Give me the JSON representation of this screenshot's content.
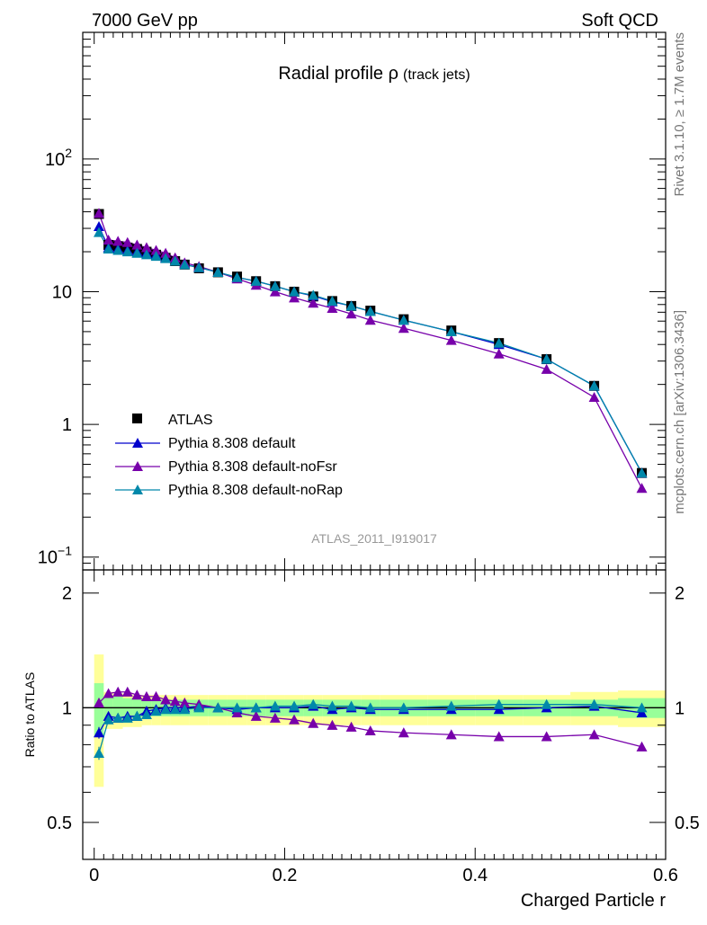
{
  "header": {
    "left": "7000 GeV pp",
    "right": "Soft QCD"
  },
  "side_labels": {
    "rivet": "Rivet 3.1.10, ≥ 1.7M events",
    "mcplots": "mcplots.cern.ch [arXiv:1306.3436]"
  },
  "chart_data": [
    {
      "type": "scatter",
      "title_main": "Radial profile ρ",
      "title_sub": "(track jets)",
      "watermark": "ATLAS_2011_I919017",
      "xlim": [
        -0.012,
        0.6
      ],
      "ylim": [
        0.08,
        900
      ],
      "yscale": "log",
      "x_ticks": [
        0,
        0.2,
        0.4,
        0.6
      ],
      "y_tick_labels": [
        {
          "value": 100,
          "base": "10",
          "exp": "2"
        },
        {
          "value": 10,
          "base": "10",
          "exp": ""
        },
        {
          "value": 1,
          "base": "1",
          "exp": ""
        },
        {
          "value": 0.1,
          "base": "10",
          "exp": "−1"
        }
      ],
      "legend_position": "bottom-left",
      "x": [
        0.005,
        0.015,
        0.025,
        0.035,
        0.045,
        0.055,
        0.065,
        0.075,
        0.085,
        0.095,
        0.11,
        0.13,
        0.15,
        0.17,
        0.19,
        0.21,
        0.23,
        0.25,
        0.27,
        0.29,
        0.325,
        0.375,
        0.425,
        0.475,
        0.525,
        0.575
      ],
      "series": [
        {
          "name": "ATLAS",
          "color": "#000000",
          "marker": "square",
          "values": [
            38.5,
            22.5,
            22.0,
            21.5,
            21.0,
            20.0,
            19.0,
            18.0,
            17.0,
            16.0,
            15.0,
            14.0,
            13.0,
            12.0,
            11.0,
            10.0,
            9.2,
            8.5,
            7.8,
            7.2,
            6.2,
            5.1,
            4.1,
            3.1,
            1.95,
            0.43
          ]
        },
        {
          "name": "Pythia 8.308 default",
          "color": "#0000cc",
          "marker": "triangle",
          "values": [
            31.0,
            21.5,
            21.0,
            20.5,
            20.0,
            19.5,
            19.0,
            18.0,
            17.0,
            16.0,
            15.2,
            14.0,
            12.8,
            12.0,
            11.0,
            10.0,
            9.3,
            8.4,
            7.8,
            7.1,
            6.1,
            5.0,
            4.0,
            3.1,
            1.95,
            0.43
          ]
        },
        {
          "name": "Pythia 8.308 default-noFsr",
          "color": "#7700aa",
          "marker": "triangle",
          "values": [
            39.0,
            24.5,
            24.0,
            23.5,
            22.5,
            21.5,
            20.5,
            19.5,
            18.0,
            16.5,
            15.5,
            14.0,
            12.5,
            11.2,
            10.0,
            9.0,
            8.2,
            7.5,
            6.8,
            6.1,
            5.3,
            4.3,
            3.4,
            2.6,
            1.6,
            0.33
          ]
        },
        {
          "name": "Pythia 8.308 default-noRap",
          "color": "#0088aa",
          "marker": "triangle",
          "values": [
            28.0,
            21.0,
            20.5,
            20.0,
            19.5,
            19.0,
            18.5,
            17.8,
            17.0,
            16.0,
            15.2,
            14.0,
            12.8,
            12.0,
            11.0,
            10.0,
            9.4,
            8.5,
            7.8,
            7.1,
            6.1,
            5.0,
            4.1,
            3.1,
            1.95,
            0.43
          ]
        }
      ]
    },
    {
      "type": "scatter",
      "ylabel": "Ratio to ATLAS",
      "xlabel": "Charged Particle r",
      "xlim": [
        -0.012,
        0.6
      ],
      "ylim": [
        0.4,
        2.3
      ],
      "yscale": "log",
      "x_ticks": [
        0,
        0.2,
        0.4,
        0.6
      ],
      "x_tick_labels": [
        "0",
        "0.2",
        "0.4",
        "0.6"
      ],
      "y_ticks": [
        0.5,
        1,
        2
      ],
      "y_tick_labels": [
        "0.5",
        "1",
        "2"
      ],
      "bands": {
        "edges": [
          0,
          0.01,
          0.02,
          0.03,
          0.04,
          0.05,
          0.06,
          0.07,
          0.08,
          0.09,
          0.1,
          0.12,
          0.14,
          0.16,
          0.18,
          0.2,
          0.22,
          0.24,
          0.26,
          0.28,
          0.3,
          0.35,
          0.4,
          0.45,
          0.5,
          0.55,
          0.6
        ],
        "stat_lo": [
          0.84,
          0.93,
          0.93,
          0.94,
          0.94,
          0.95,
          0.95,
          0.95,
          0.95,
          0.95,
          0.95,
          0.95,
          0.95,
          0.95,
          0.95,
          0.95,
          0.95,
          0.95,
          0.95,
          0.95,
          0.95,
          0.95,
          0.95,
          0.95,
          0.95,
          0.94
        ],
        "stat_hi": [
          1.16,
          1.07,
          1.07,
          1.06,
          1.06,
          1.05,
          1.05,
          1.05,
          1.05,
          1.05,
          1.05,
          1.05,
          1.05,
          1.05,
          1.05,
          1.05,
          1.05,
          1.05,
          1.05,
          1.05,
          1.05,
          1.05,
          1.05,
          1.05,
          1.05,
          1.06
        ],
        "sys_lo": [
          0.62,
          0.88,
          0.88,
          0.89,
          0.89,
          0.9,
          0.9,
          0.9,
          0.9,
          0.9,
          0.9,
          0.9,
          0.9,
          0.9,
          0.9,
          0.9,
          0.9,
          0.9,
          0.9,
          0.9,
          0.9,
          0.9,
          0.9,
          0.9,
          0.9,
          0.89
        ],
        "sys_hi": [
          1.38,
          1.1,
          1.09,
          1.09,
          1.08,
          1.08,
          1.08,
          1.08,
          1.08,
          1.08,
          1.08,
          1.08,
          1.08,
          1.08,
          1.08,
          1.08,
          1.08,
          1.08,
          1.08,
          1.08,
          1.08,
          1.08,
          1.08,
          1.08,
          1.1,
          1.11
        ]
      },
      "series": [
        {
          "name": "Pythia 8.308 default",
          "color": "#0000cc",
          "values": [
            0.86,
            0.95,
            0.94,
            0.95,
            0.95,
            0.98,
            0.99,
            1.0,
            1.0,
            1.0,
            1.01,
            1.0,
            0.99,
            1.0,
            1.0,
            1.0,
            1.01,
            0.99,
            1.0,
            0.99,
            0.99,
            0.99,
            0.99,
            1.0,
            1.01,
            0.97
          ],
          "errors": [
            0.03,
            0.01,
            0.01,
            0.01,
            0.01,
            0.01,
            0.01,
            0.01,
            0.01,
            0.01,
            0.01,
            0.01,
            0.01,
            0.01,
            0.01,
            0.01,
            0.01,
            0.01,
            0.01,
            0.01,
            0.01,
            0.01,
            0.01,
            0.01,
            0.01,
            0.01
          ]
        },
        {
          "name": "Pythia 8.308 default-noFsr",
          "color": "#7700aa",
          "values": [
            1.03,
            1.09,
            1.1,
            1.1,
            1.08,
            1.07,
            1.07,
            1.05,
            1.04,
            1.03,
            1.02,
            1.0,
            0.97,
            0.95,
            0.94,
            0.93,
            0.91,
            0.9,
            0.89,
            0.87,
            0.86,
            0.85,
            0.84,
            0.84,
            0.85,
            0.79
          ],
          "errors": [
            0.02,
            0.01,
            0.01,
            0.01,
            0.01,
            0.01,
            0.01,
            0.01,
            0.01,
            0.01,
            0.01,
            0.01,
            0.01,
            0.01,
            0.01,
            0.01,
            0.01,
            0.01,
            0.01,
            0.01,
            0.01,
            0.01,
            0.01,
            0.01,
            0.01,
            0.01
          ]
        },
        {
          "name": "Pythia 8.308 default-noRap",
          "color": "#0088aa",
          "values": [
            0.76,
            0.93,
            0.94,
            0.94,
            0.95,
            0.96,
            0.98,
            0.99,
            0.99,
            0.99,
            1.0,
            1.0,
            1.0,
            1.0,
            1.01,
            1.01,
            1.02,
            1.01,
            1.01,
            1.0,
            1.0,
            1.01,
            1.02,
            1.02,
            1.02,
            1.0
          ],
          "errors": [
            0.03,
            0.01,
            0.01,
            0.01,
            0.01,
            0.01,
            0.01,
            0.01,
            0.01,
            0.01,
            0.01,
            0.01,
            0.01,
            0.01,
            0.01,
            0.01,
            0.01,
            0.01,
            0.01,
            0.01,
            0.01,
            0.01,
            0.01,
            0.01,
            0.01,
            0.01
          ]
        }
      ]
    }
  ]
}
